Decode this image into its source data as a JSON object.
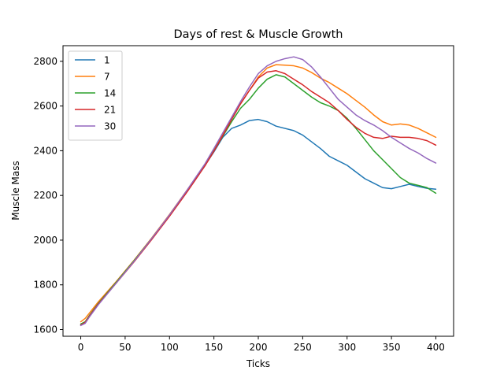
{
  "chart_data": {
    "type": "line",
    "title": "Days of rest & Muscle Growth",
    "xlabel": "Ticks",
    "ylabel": "Muscle Mass",
    "xlim": [
      -20,
      420
    ],
    "ylim": [
      1570,
      2870
    ],
    "xticks": [
      0,
      50,
      100,
      150,
      200,
      250,
      300,
      350,
      400
    ],
    "yticks": [
      1600,
      1800,
      2000,
      2200,
      2400,
      2600,
      2800
    ],
    "grid": false,
    "legend_position": "top-left",
    "series": [
      {
        "name": "1",
        "color": "#1f77b4",
        "x": [
          0,
          5,
          10,
          20,
          40,
          60,
          80,
          100,
          120,
          140,
          150,
          160,
          170,
          180,
          190,
          200,
          210,
          220,
          240,
          250,
          260,
          270,
          280,
          290,
          300,
          310,
          320,
          330,
          340,
          350,
          360,
          370,
          380,
          390,
          400
        ],
        "y": [
          1620,
          1630,
          1660,
          1715,
          1810,
          1905,
          2005,
          2110,
          2220,
          2335,
          2395,
          2460,
          2500,
          2515,
          2535,
          2540,
          2530,
          2510,
          2490,
          2470,
          2440,
          2410,
          2375,
          2355,
          2335,
          2305,
          2275,
          2255,
          2235,
          2230,
          2240,
          2250,
          2240,
          2232,
          2228
        ]
      },
      {
        "name": "7",
        "color": "#ff7f0e",
        "x": [
          0,
          5,
          10,
          20,
          40,
          60,
          80,
          100,
          120,
          140,
          150,
          160,
          170,
          180,
          190,
          200,
          210,
          220,
          230,
          240,
          250,
          260,
          270,
          280,
          290,
          300,
          310,
          320,
          330,
          340,
          350,
          360,
          370,
          380,
          390,
          400
        ],
        "y": [
          1635,
          1650,
          1675,
          1725,
          1815,
          1910,
          2010,
          2115,
          2225,
          2340,
          2405,
          2475,
          2545,
          2610,
          2670,
          2730,
          2770,
          2785,
          2783,
          2780,
          2770,
          2750,
          2725,
          2705,
          2680,
          2655,
          2625,
          2595,
          2560,
          2530,
          2515,
          2520,
          2515,
          2500,
          2480,
          2460
        ]
      },
      {
        "name": "14",
        "color": "#2ca02c",
        "x": [
          0,
          5,
          10,
          20,
          40,
          60,
          80,
          100,
          120,
          140,
          150,
          160,
          170,
          180,
          190,
          200,
          210,
          220,
          230,
          240,
          250,
          260,
          270,
          280,
          290,
          300,
          310,
          320,
          330,
          340,
          350,
          360,
          370,
          380,
          390,
          400
        ],
        "y": [
          1625,
          1635,
          1665,
          1718,
          1812,
          1908,
          2008,
          2112,
          2222,
          2338,
          2400,
          2465,
          2530,
          2590,
          2630,
          2680,
          2720,
          2740,
          2730,
          2700,
          2670,
          2640,
          2615,
          2600,
          2580,
          2545,
          2500,
          2450,
          2400,
          2360,
          2320,
          2280,
          2255,
          2245,
          2235,
          2210
        ]
      },
      {
        "name": "21",
        "color": "#d62728",
        "x": [
          0,
          5,
          10,
          20,
          40,
          60,
          80,
          100,
          120,
          140,
          150,
          160,
          170,
          180,
          190,
          200,
          210,
          220,
          230,
          240,
          250,
          260,
          270,
          280,
          290,
          300,
          310,
          320,
          330,
          340,
          350,
          360,
          370,
          380,
          390,
          400
        ],
        "y": [
          1620,
          1632,
          1662,
          1715,
          1808,
          1903,
          2003,
          2107,
          2217,
          2333,
          2398,
          2468,
          2540,
          2610,
          2670,
          2725,
          2752,
          2758,
          2745,
          2720,
          2695,
          2665,
          2640,
          2615,
          2580,
          2540,
          2505,
          2478,
          2460,
          2455,
          2465,
          2460,
          2460,
          2455,
          2445,
          2425
        ]
      },
      {
        "name": "30",
        "color": "#9467bd",
        "x": [
          0,
          5,
          10,
          20,
          40,
          60,
          80,
          100,
          120,
          140,
          150,
          160,
          170,
          180,
          190,
          200,
          210,
          220,
          230,
          240,
          250,
          260,
          270,
          280,
          290,
          300,
          310,
          320,
          330,
          340,
          350,
          360,
          370,
          380,
          390,
          400
        ],
        "y": [
          1618,
          1628,
          1658,
          1712,
          1808,
          1905,
          2008,
          2113,
          2225,
          2342,
          2410,
          2480,
          2550,
          2620,
          2685,
          2745,
          2780,
          2800,
          2812,
          2820,
          2808,
          2775,
          2730,
          2680,
          2630,
          2595,
          2560,
          2535,
          2515,
          2490,
          2460,
          2435,
          2410,
          2390,
          2365,
          2345
        ]
      }
    ]
  }
}
